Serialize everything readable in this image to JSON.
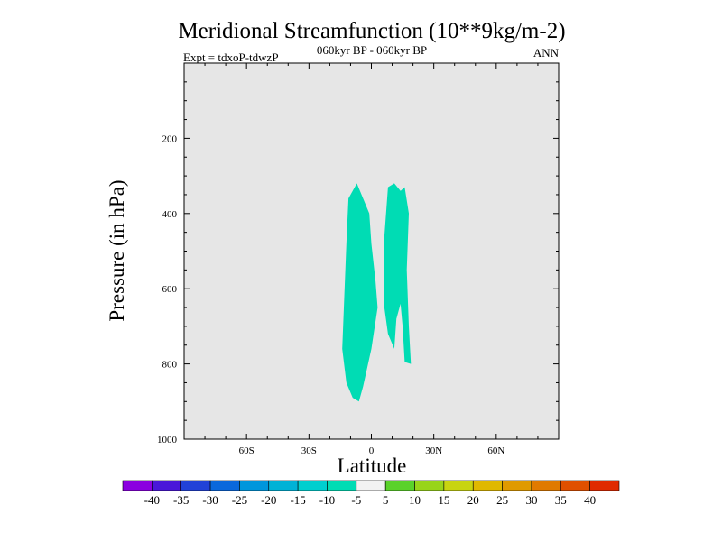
{
  "chart_data": {
    "type": "contour",
    "title": "Meridional Streamfunction (10**9kg/m-2)",
    "subtitle_left": "Expt = tdxoP-tdwzP",
    "subtitle_center": "060kyr BP - 060kyr BP",
    "subtitle_right": "ANN",
    "xlabel": "Latitude",
    "ylabel": "Pressure (in hPa)",
    "xlim": [
      -90,
      90
    ],
    "ylim": [
      0,
      1000
    ],
    "y_inverted": true,
    "x_ticks": [
      {
        "value": -60,
        "label": "60S"
      },
      {
        "value": -30,
        "label": "30S"
      },
      {
        "value": 0,
        "label": "0"
      },
      {
        "value": 30,
        "label": "30N"
      },
      {
        "value": 60,
        "label": "60N"
      }
    ],
    "y_ticks": [
      {
        "value": 200,
        "label": "200"
      },
      {
        "value": 400,
        "label": "400"
      },
      {
        "value": 600,
        "label": "600"
      },
      {
        "value": 800,
        "label": "800"
      },
      {
        "value": 1000,
        "label": "1000"
      }
    ],
    "background_color": "#e6e6e6",
    "regions": [
      {
        "color": "#00dcb4",
        "points": [
          [
            -7,
            320
          ],
          [
            -1,
            400
          ],
          [
            0,
            480
          ],
          [
            2,
            580
          ],
          [
            3,
            650
          ],
          [
            0,
            760
          ],
          [
            -4,
            860
          ],
          [
            -6,
            900
          ],
          [
            -9,
            890
          ],
          [
            -12,
            850
          ],
          [
            -14,
            760
          ],
          [
            -13,
            620
          ],
          [
            -12,
            480
          ],
          [
            -11,
            360
          ]
        ]
      },
      {
        "color": "#00dcb4",
        "points": [
          [
            8,
            330
          ],
          [
            11,
            320
          ],
          [
            14,
            340
          ],
          [
            16,
            330
          ],
          [
            18,
            400
          ],
          [
            17,
            550
          ],
          [
            18,
            700
          ],
          [
            19,
            800
          ],
          [
            16,
            795
          ],
          [
            15,
            700
          ],
          [
            14,
            640
          ],
          [
            12,
            680
          ],
          [
            11,
            760
          ],
          [
            8,
            720
          ],
          [
            6,
            640
          ],
          [
            6,
            480
          ]
        ]
      }
    ],
    "colorbar": {
      "labels": [
        "-40",
        "-35",
        "-30",
        "-25",
        "-20",
        "-15",
        "-10",
        "-5",
        "5",
        "10",
        "15",
        "20",
        "25",
        "30",
        "35",
        "40"
      ],
      "colors": [
        "#8b00e0",
        "#4a17d9",
        "#2142d8",
        "#0a68dc",
        "#0096dc",
        "#00b2d6",
        "#00cfcf",
        "#00dcb4",
        "#f2f2f2",
        "#5ad22a",
        "#98d41a",
        "#c8d410",
        "#e0b800",
        "#e09a00",
        "#e07a00",
        "#e05000",
        "#e02a00"
      ]
    }
  }
}
